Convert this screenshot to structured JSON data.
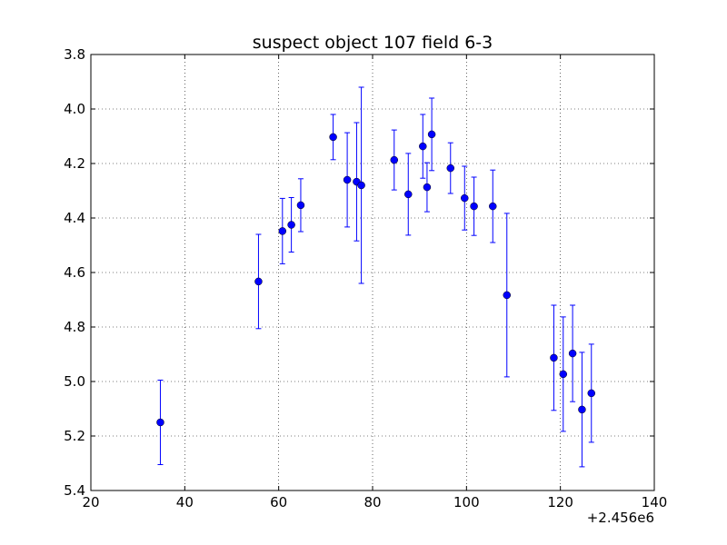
{
  "chart_data": {
    "type": "scatter",
    "title": "suspect object 107 field 6-3",
    "xlabel": "",
    "ylabel": "",
    "x_offset_label": "+2.456e6",
    "xlim": [
      20,
      140
    ],
    "ylim": [
      5.4,
      3.8
    ],
    "y_inverted": true,
    "grid": true,
    "grid_style": "dotted",
    "x_ticks": [
      "20",
      "40",
      "60",
      "80",
      "100",
      "120",
      "140"
    ],
    "y_ticks": [
      "3.8",
      "4.0",
      "4.2",
      "4.4",
      "4.6",
      "4.8",
      "5.0",
      "5.2",
      "5.4"
    ],
    "marker_color": "#0000ff",
    "errorbar_color": "#0000ff",
    "series": [
      {
        "points": [
          {
            "x": 34.8,
            "y": 5.15,
            "err": 0.155
          },
          {
            "x": 55.7,
            "y": 4.633,
            "err": 0.173
          },
          {
            "x": 60.8,
            "y": 4.448,
            "err": 0.12
          },
          {
            "x": 62.7,
            "y": 4.425,
            "err": 0.1
          },
          {
            "x": 64.7,
            "y": 4.353,
            "err": 0.097
          },
          {
            "x": 71.6,
            "y": 4.103,
            "err": 0.083
          },
          {
            "x": 74.6,
            "y": 4.26,
            "err": 0.173
          },
          {
            "x": 76.6,
            "y": 4.267,
            "err": 0.217
          },
          {
            "x": 77.6,
            "y": 4.28,
            "err": 0.36
          },
          {
            "x": 84.6,
            "y": 4.187,
            "err": 0.11
          },
          {
            "x": 87.6,
            "y": 4.313,
            "err": 0.15
          },
          {
            "x": 90.7,
            "y": 4.137,
            "err": 0.117
          },
          {
            "x": 91.6,
            "y": 4.287,
            "err": 0.09
          },
          {
            "x": 92.6,
            "y": 4.093,
            "err": 0.133
          },
          {
            "x": 96.6,
            "y": 4.217,
            "err": 0.093
          },
          {
            "x": 99.6,
            "y": 4.327,
            "err": 0.117
          },
          {
            "x": 101.6,
            "y": 4.357,
            "err": 0.107
          },
          {
            "x": 105.6,
            "y": 4.357,
            "err": 0.133
          },
          {
            "x": 108.6,
            "y": 4.683,
            "err": 0.3
          },
          {
            "x": 118.6,
            "y": 4.913,
            "err": 0.193
          },
          {
            "x": 120.6,
            "y": 4.973,
            "err": 0.21
          },
          {
            "x": 122.6,
            "y": 4.897,
            "err": 0.177
          },
          {
            "x": 124.6,
            "y": 5.103,
            "err": 0.21
          },
          {
            "x": 126.6,
            "y": 5.043,
            "err": 0.18
          }
        ]
      }
    ]
  }
}
